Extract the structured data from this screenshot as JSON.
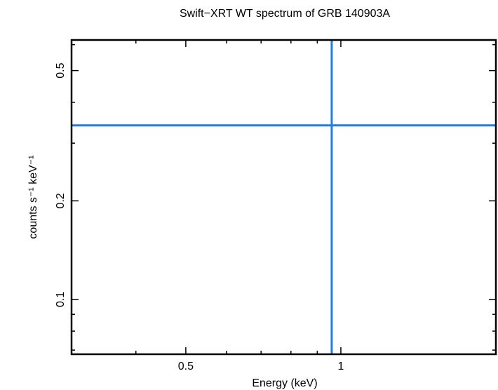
{
  "chart_data": {
    "type": "scatter",
    "title": "Swift−XRT WT spectrum of GRB 140903A",
    "xlabel": "Energy (keV)",
    "ylabel": "counts s⁻¹ keV⁻¹",
    "x_scale": "log",
    "y_scale": "log",
    "xlim": [
      0.3,
      2.0
    ],
    "ylim": [
      0.068,
      0.62
    ],
    "x_ticks": [
      {
        "value": 0.5,
        "label": "0.5"
      },
      {
        "value": 1,
        "label": "1"
      }
    ],
    "y_ticks": [
      {
        "value": 0.1,
        "label": "0.1"
      },
      {
        "value": 0.2,
        "label": "0.2"
      },
      {
        "value": 0.5,
        "label": "0.5"
      }
    ],
    "series": [
      {
        "points": [
          {
            "x": 0.96,
            "y": 0.34,
            "xerr": [
              0.3,
              2.0
            ],
            "yerr": [
              0.068,
              0.62
            ]
          }
        ],
        "color": "#1a7fe6"
      }
    ],
    "grid": false
  }
}
